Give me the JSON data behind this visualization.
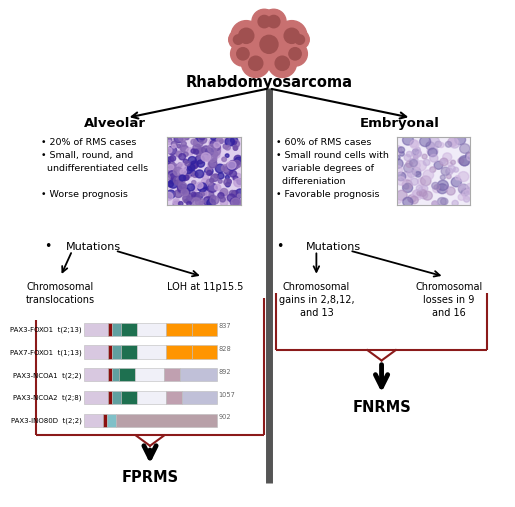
{
  "title": "Rhabdomyosarcoma",
  "left_title": "Alveolar",
  "right_title": "Embryonal",
  "mutations_label": "Mutations",
  "fprms_label": "FPRMS",
  "fnrms_label": "FNRMS",
  "genes": [
    {
      "name": "PAX3-FOXO1",
      "trans": "t(2;13)",
      "val": "837"
    },
    {
      "name": "PAX7-FOXO1",
      "trans": "t(1;13)",
      "val": "828"
    },
    {
      "name": "PAX3-NCOA1",
      "trans": "t(2;2)",
      "val": "892"
    },
    {
      "name": "PAX3-NCOA2",
      "trans": "t(2;8)",
      "val": "1057"
    },
    {
      "name": "PAX3-INO80D",
      "trans": "t(2;2)",
      "val": "902"
    }
  ],
  "seg_colors": [
    [
      "#d8c8e0",
      "#8b1010",
      "#60a0a0",
      "#1e7050",
      "#f0f0f8",
      "#ff9500",
      "#ff9500"
    ],
    [
      "#d8c8e0",
      "#8b1010",
      "#60a0a0",
      "#1e7050",
      "#f0f0f8",
      "#ff9500",
      "#ff9500"
    ],
    [
      "#d8c8e0",
      "#8b1010",
      "#60a0a0",
      "#1e7050",
      "#f0f0f8",
      "#c0a0b0",
      "#c0c0d8"
    ],
    [
      "#d8c8e0",
      "#8b1010",
      "#60a0a0",
      "#1e7050",
      "#f0f0f8",
      "#c0a0b0",
      "#c0c0d8"
    ],
    [
      "#d8c8e0",
      "#8b1010",
      "#80c0c8",
      "#b8a0a8",
      "#b8a0a8",
      "",
      ""
    ]
  ],
  "seg_widths": [
    [
      0.18,
      0.03,
      0.07,
      0.12,
      0.22,
      0.19,
      0.19
    ],
    [
      0.18,
      0.03,
      0.07,
      0.12,
      0.22,
      0.19,
      0.19
    ],
    [
      0.18,
      0.03,
      0.05,
      0.12,
      0.22,
      0.12,
      0.28
    ],
    [
      0.18,
      0.03,
      0.07,
      0.12,
      0.22,
      0.12,
      0.26
    ],
    [
      0.14,
      0.03,
      0.07,
      0.76,
      0.0,
      0.0,
      0.0
    ]
  ],
  "bg_color": "#ffffff",
  "brace_color": "#8b1a1a",
  "text_color": "#000000",
  "gray_line_color": "#555555"
}
